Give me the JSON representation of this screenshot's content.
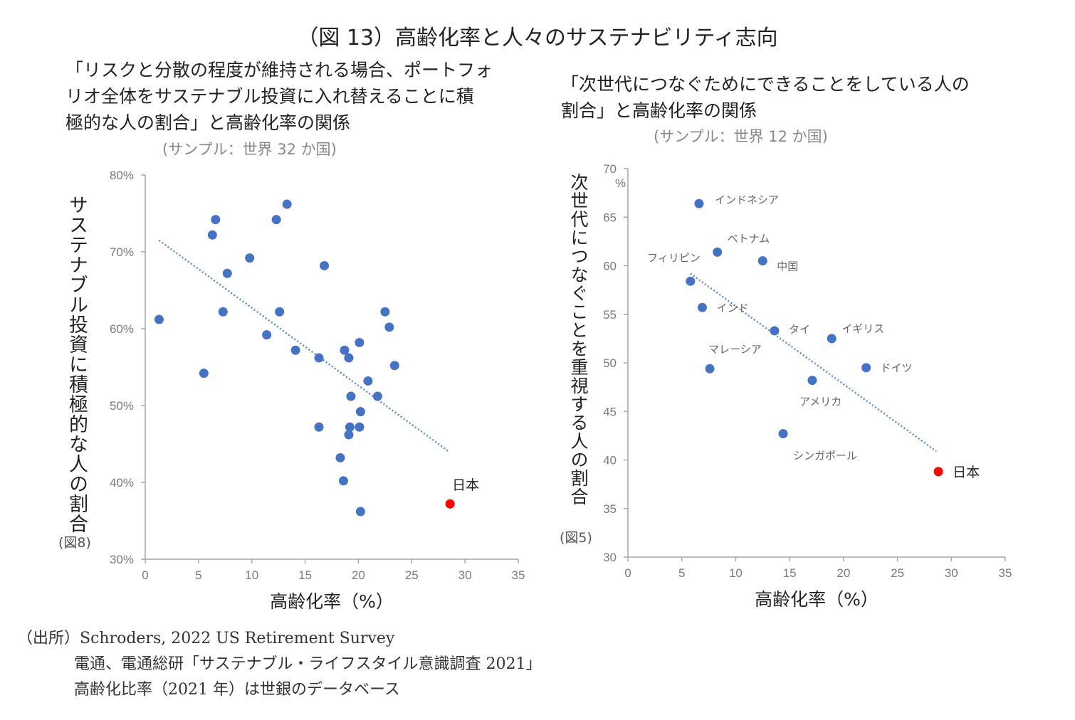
{
  "figure_title": "（図 13）高齢化率と人々のサステナビリティ志向",
  "chart_data": [
    {
      "type": "scatter",
      "title": "「リスクと分散の程度が維持される場合、ポートフォ\nリオ全体をサステナブル投資に入れ替えることに積\n極的な人の割合」と高齢化率の関係",
      "subtitle": "(サンプル：世界 32 か国)",
      "xlabel": "高齢化率（%）",
      "ylabel": "サステナブル投資に積極的な人の割合",
      "ylabel_note": "(図8)",
      "xlim": [
        0,
        35
      ],
      "ylim": [
        30,
        80
      ],
      "xticks": [
        0,
        5,
        10,
        15,
        20,
        25,
        30,
        35
      ],
      "yticks": [
        30,
        40,
        50,
        60,
        70,
        80
      ],
      "ytick_suffix": "%",
      "point_color": "#4472C4",
      "highlight_color": "#FF0000",
      "trendline": {
        "x1": 1.3,
        "y1": 71.5,
        "x2": 28.5,
        "y2": 44.0
      },
      "points": [
        {
          "x": 1.3,
          "y": 61.2
        },
        {
          "x": 5.5,
          "y": 54.2
        },
        {
          "x": 6.3,
          "y": 72.2
        },
        {
          "x": 6.6,
          "y": 74.2
        },
        {
          "x": 7.3,
          "y": 62.2
        },
        {
          "x": 7.7,
          "y": 67.2
        },
        {
          "x": 9.8,
          "y": 69.2
        },
        {
          "x": 11.4,
          "y": 59.2
        },
        {
          "x": 12.3,
          "y": 74.2
        },
        {
          "x": 12.6,
          "y": 62.2
        },
        {
          "x": 13.3,
          "y": 76.2
        },
        {
          "x": 14.1,
          "y": 57.2
        },
        {
          "x": 16.3,
          "y": 56.2
        },
        {
          "x": 16.8,
          "y": 68.2
        },
        {
          "x": 16.3,
          "y": 47.2
        },
        {
          "x": 18.7,
          "y": 57.2
        },
        {
          "x": 19.1,
          "y": 56.2
        },
        {
          "x": 18.3,
          "y": 43.2
        },
        {
          "x": 18.6,
          "y": 40.2
        },
        {
          "x": 19.3,
          "y": 51.2
        },
        {
          "x": 19.2,
          "y": 47.2
        },
        {
          "x": 19.1,
          "y": 46.2
        },
        {
          "x": 20.1,
          "y": 58.2
        },
        {
          "x": 20.2,
          "y": 49.2
        },
        {
          "x": 20.1,
          "y": 47.2
        },
        {
          "x": 20.2,
          "y": 36.2
        },
        {
          "x": 20.9,
          "y": 53.2
        },
        {
          "x": 21.8,
          "y": 51.2
        },
        {
          "x": 22.5,
          "y": 62.2
        },
        {
          "x": 22.9,
          "y": 60.2
        },
        {
          "x": 23.4,
          "y": 55.2
        },
        {
          "x": 28.6,
          "y": 37.2,
          "label": "日本",
          "highlight": true
        }
      ]
    },
    {
      "type": "scatter",
      "title": "「次世代につなぐためにできることをしている人の\n割合」と高齢化率の関係",
      "subtitle": "(サンプル：世界 12 か国)",
      "xlabel": "高齢化率（%）",
      "ylabel": "次世代につなぐことを重視する人の割合",
      "ylabel_note": "(図5)",
      "yunit": "%",
      "xlim": [
        0,
        35
      ],
      "ylim": [
        30,
        70
      ],
      "xticks": [
        0,
        5,
        10,
        15,
        20,
        25,
        30,
        35
      ],
      "yticks": [
        30,
        35,
        40,
        45,
        50,
        55,
        60,
        65,
        70
      ],
      "point_color": "#4472C4",
      "highlight_color": "#FF0000",
      "trendline": {
        "x1": 5.8,
        "y1": 59.2,
        "x2": 28.6,
        "y2": 40.9
      },
      "points": [
        {
          "x": 6.6,
          "y": 66.4,
          "label": "インドネシア"
        },
        {
          "x": 8.3,
          "y": 61.4,
          "label": "ベトナム"
        },
        {
          "x": 12.5,
          "y": 60.5,
          "label": "中国"
        },
        {
          "x": 5.8,
          "y": 58.4,
          "label": "フィリピン"
        },
        {
          "x": 6.9,
          "y": 55.7,
          "label": "インド"
        },
        {
          "x": 13.6,
          "y": 53.3,
          "label": "タイ"
        },
        {
          "x": 18.9,
          "y": 52.5,
          "label": "イギリス"
        },
        {
          "x": 7.6,
          "y": 49.4,
          "label": "マレーシア"
        },
        {
          "x": 22.1,
          "y": 49.5,
          "label": "ドイツ"
        },
        {
          "x": 17.1,
          "y": 48.2,
          "label": "アメリカ"
        },
        {
          "x": 14.4,
          "y": 42.7,
          "label": "シンガポール"
        },
        {
          "x": 28.8,
          "y": 38.8,
          "label": "日本",
          "highlight": true
        }
      ]
    }
  ],
  "source": {
    "line1": "（出所）Schroders, 2022 US Retirement Survey",
    "line2": "電通、電通総研「サステナブル・ライフスタイル意識調査 2021」",
    "line3": "高齢化比率（2021 年）は世銀のデータベース"
  }
}
